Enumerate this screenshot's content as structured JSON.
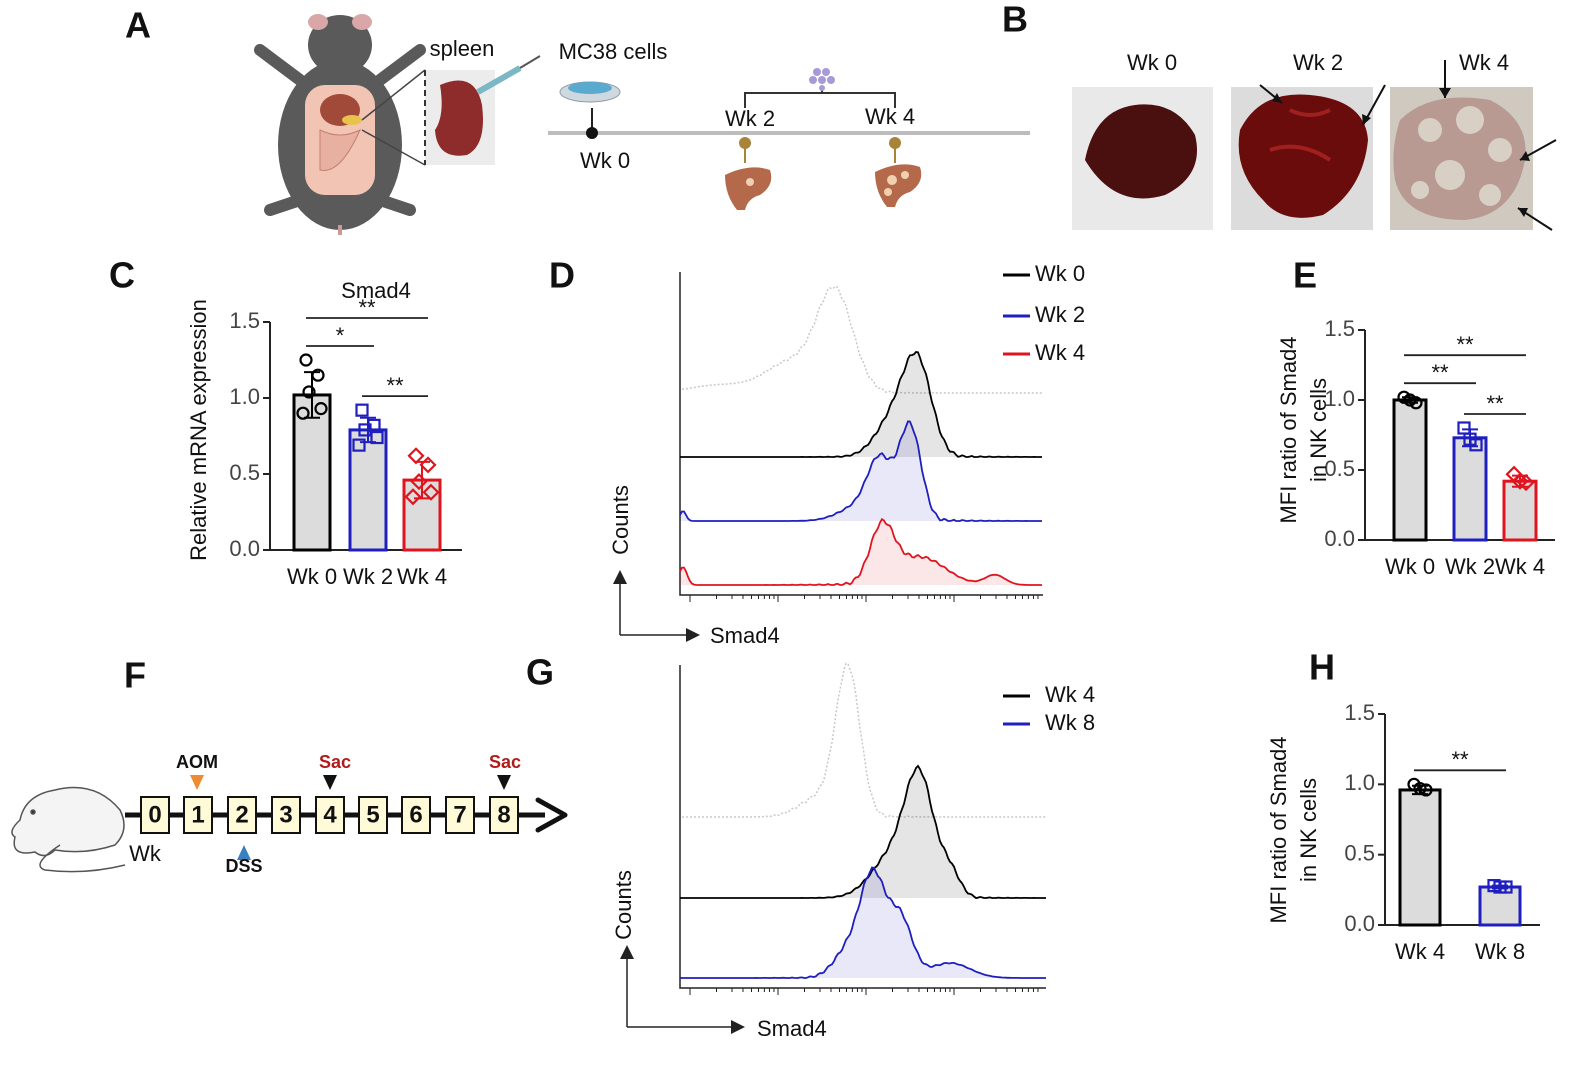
{
  "panel_labels": [
    "A",
    "B",
    "C",
    "D",
    "E",
    "F",
    "G",
    "H"
  ],
  "panels": {
    "A": {
      "organ": "spleen",
      "cells": "MC38 cells",
      "timepoints": [
        "Wk 0",
        "Wk 2",
        "Wk 4"
      ]
    },
    "B": {
      "timepoints": [
        "Wk 0",
        "Wk 2",
        "Wk 4"
      ]
    },
    "D": {
      "legend": [
        "Wk 0",
        "Wk 2",
        "Wk 4"
      ],
      "ylabel": "Counts",
      "xlabel": "Smad4"
    },
    "F": {
      "weeks": [
        0,
        1,
        2,
        3,
        4,
        5,
        6,
        7,
        8
      ],
      "unit": "Wk",
      "aom": "AOM",
      "dss": "DSS",
      "sac": [
        "Sac",
        "Sac"
      ]
    },
    "G": {
      "legend": [
        "Wk 4",
        "Wk 8"
      ],
      "ylabel": "Counts",
      "xlabel": "Smad4"
    }
  },
  "chart_data": [
    {
      "type": "bar",
      "title": "Smad4",
      "ylabel": [
        "Relative  mRNA expression"
      ],
      "categories": [
        "Wk 0",
        "Wk 2",
        "Wk 4"
      ],
      "values": [
        1.02,
        0.79,
        0.46
      ],
      "errors": [
        0.15,
        0.08,
        0.12
      ],
      "points": [
        [
          1.25,
          1.15,
          1.04,
          0.93,
          0.9
        ],
        [
          0.92,
          0.82,
          0.79,
          0.74,
          0.69
        ],
        [
          0.62,
          0.56,
          0.45,
          0.38,
          0.35
        ]
      ],
      "colors": [
        "#000000",
        "#1f1fbf",
        "#e0141e"
      ],
      "markers": [
        "circle",
        "square",
        "diamond"
      ],
      "ylim": [
        0,
        1.5
      ],
      "yticks": [
        {
          "value": 0,
          "label": "0.0"
        },
        0.5,
        {
          "value": 1,
          "label": "1.0"
        },
        1.5
      ],
      "significance": [
        {
          "label": "*",
          "between": [
            "Wk 0",
            "Wk 2"
          ]
        },
        {
          "label": "**",
          "between": [
            "Wk 2",
            "Wk 4"
          ]
        },
        {
          "label": "**",
          "between": [
            "Wk 0",
            "Wk 4"
          ]
        }
      ]
    },
    {
      "type": "bar",
      "ylabel": [
        "MFI ratio of Smad4",
        "in NK cells"
      ],
      "categories": [
        "Wk 0",
        "Wk 2",
        "Wk 4"
      ],
      "values": [
        1.0,
        0.73,
        0.42
      ],
      "errors": [
        0.02,
        0.06,
        0.04
      ],
      "points": [
        [
          1.02,
          1.0,
          0.98
        ],
        [
          0.8,
          0.72,
          0.68
        ],
        [
          0.47,
          0.42,
          0.41
        ]
      ],
      "colors": [
        "#000000",
        "#1f1fbf",
        "#e0141e"
      ],
      "markers": [
        "circle",
        "square",
        "diamond"
      ],
      "ylim": [
        0,
        1.5
      ],
      "yticks": [
        {
          "value": 0,
          "label": "0.0"
        },
        0.5,
        {
          "value": 1,
          "label": "1.0"
        },
        1.5
      ],
      "significance": [
        {
          "label": "**",
          "between": [
            "Wk 0",
            "Wk 2"
          ]
        },
        {
          "label": "**",
          "between": [
            "Wk 2",
            "Wk 4"
          ]
        },
        {
          "label": "**",
          "between": [
            "Wk 0",
            "Wk 4"
          ]
        }
      ]
    },
    {
      "type": "bar",
      "ylabel": [
        "MFI ratio of Smad4",
        "in NK cells"
      ],
      "categories": [
        "Wk 4",
        "Wk 8"
      ],
      "values": [
        0.96,
        0.27
      ],
      "errors": [
        0.03,
        0.01
      ],
      "points": [
        [
          1.0,
          0.97,
          0.96
        ],
        [
          0.28,
          0.27,
          0.27
        ]
      ],
      "colors": [
        "#000000",
        "#1f1fbf"
      ],
      "markers": [
        "circle",
        "square"
      ],
      "ylim": [
        0,
        1.5
      ],
      "yticks": [
        {
          "value": 0,
          "label": "0.0"
        },
        0.5,
        {
          "value": 1,
          "label": "1.0"
        },
        1.5
      ],
      "significance": [
        {
          "label": "**",
          "between": [
            "Wk 4",
            "Wk 8"
          ]
        }
      ]
    }
  ]
}
